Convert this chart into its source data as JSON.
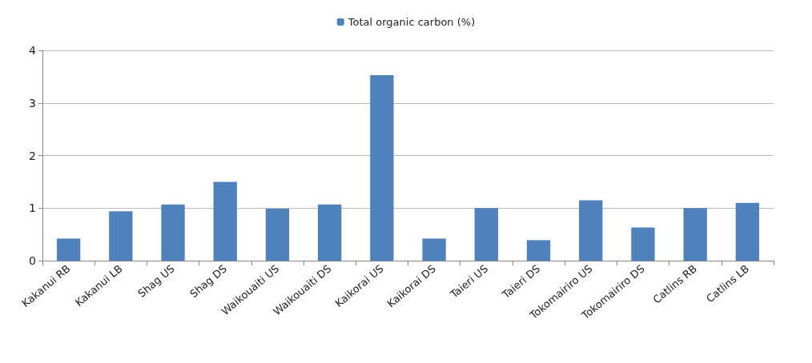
{
  "chart_data": {
    "type": "bar",
    "categories": [
      "Kakanui RB",
      "Kakanui LB",
      "Shag US",
      "Shag DS",
      "Waikouaiti US",
      "Waikouaiti DS",
      "Kaikorai US",
      "Kaikorai DS",
      "Taieri US",
      "Taieri DS",
      "Tokomairiro US",
      "Tokomairiro DS",
      "Catlins RB",
      "Catlins LB"
    ],
    "series": [
      {
        "name": "Total organic carbon (%)",
        "color": "#4f81bd",
        "values": [
          0.42,
          0.94,
          1.07,
          1.5,
          0.99,
          1.07,
          3.53,
          0.42,
          1.0,
          0.39,
          1.15,
          0.63,
          1.0,
          1.1
        ]
      }
    ],
    "ylim": [
      0,
      4
    ],
    "yticks": [
      0,
      1,
      2,
      3,
      4
    ],
    "grid": "y",
    "legend": "top"
  }
}
